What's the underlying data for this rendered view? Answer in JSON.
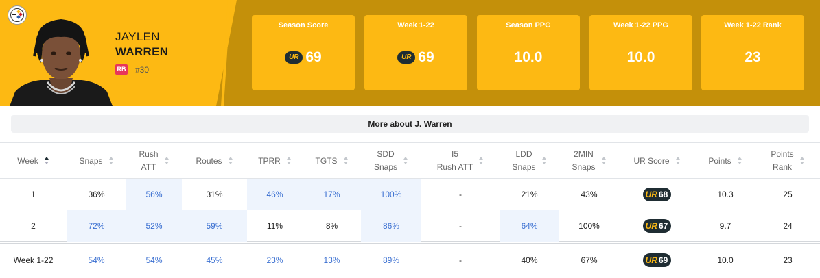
{
  "player": {
    "first_name": "JAYLEN",
    "last_name": "WARREN",
    "position": "RB",
    "jersey": "#30"
  },
  "colors": {
    "team_gold": "#fdb913",
    "team_dark_gold": "#c4900a",
    "badge_dark": "#1f2d33",
    "position_badge": "#e8355a",
    "highlight_bg": "#eef4fd",
    "highlight_text": "#3a6fd1"
  },
  "icons": {
    "team_logo": "steelers-logo-icon",
    "ur_logo": "ur-logo-icon"
  },
  "stat_cards": [
    {
      "label": "Season Score",
      "value": "69",
      "has_ur_logo": true
    },
    {
      "label": "Week 1-22",
      "value": "69",
      "has_ur_logo": true
    },
    {
      "label": "Season PPG",
      "value": "10.0",
      "has_ur_logo": false
    },
    {
      "label": "Week 1-22 PPG",
      "value": "10.0",
      "has_ur_logo": false
    },
    {
      "label": "Week 1-22 Rank",
      "value": "23",
      "has_ur_logo": false
    }
  ],
  "more_about": "More about J. Warren",
  "ur_mark": "UR",
  "table": {
    "columns": [
      {
        "line1": "Week",
        "line2": ""
      },
      {
        "line1": "Snaps",
        "line2": ""
      },
      {
        "line1": "Rush",
        "line2": "ATT"
      },
      {
        "line1": "Routes",
        "line2": ""
      },
      {
        "line1": "TPRR",
        "line2": ""
      },
      {
        "line1": "TGTS",
        "line2": ""
      },
      {
        "line1": "SDD",
        "line2": "Snaps"
      },
      {
        "line1": "I5",
        "line2": "Rush ATT"
      },
      {
        "line1": "LDD",
        "line2": "Snaps"
      },
      {
        "line1": "2MIN",
        "line2": "Snaps"
      },
      {
        "line1": "UR Score",
        "line2": ""
      },
      {
        "line1": "Points",
        "line2": ""
      },
      {
        "line1": "Points",
        "line2": "Rank"
      }
    ],
    "rows": [
      {
        "cells": [
          "1",
          "36%",
          "56%",
          "31%",
          "46%",
          "17%",
          "100%",
          "-",
          "21%",
          "43%",
          "68",
          "10.3",
          "25"
        ],
        "highlight": [
          false,
          false,
          true,
          false,
          true,
          true,
          true,
          false,
          false,
          false,
          false,
          false,
          false
        ]
      },
      {
        "cells": [
          "2",
          "72%",
          "52%",
          "59%",
          "11%",
          "8%",
          "86%",
          "-",
          "64%",
          "100%",
          "67",
          "9.7",
          "24"
        ],
        "highlight": [
          false,
          true,
          true,
          true,
          false,
          false,
          true,
          false,
          true,
          false,
          false,
          false,
          false
        ]
      },
      {
        "cells": [
          "Week 1-22",
          "54%",
          "54%",
          "45%",
          "23%",
          "13%",
          "89%",
          "-",
          "40%",
          "67%",
          "69",
          "10.0",
          "23"
        ],
        "highlight": [
          false,
          false,
          false,
          false,
          false,
          false,
          false,
          false,
          false,
          false,
          false,
          false,
          false
        ],
        "blue": [
          false,
          true,
          true,
          true,
          true,
          true,
          true,
          false,
          false,
          false,
          false,
          false,
          false
        ]
      }
    ]
  }
}
